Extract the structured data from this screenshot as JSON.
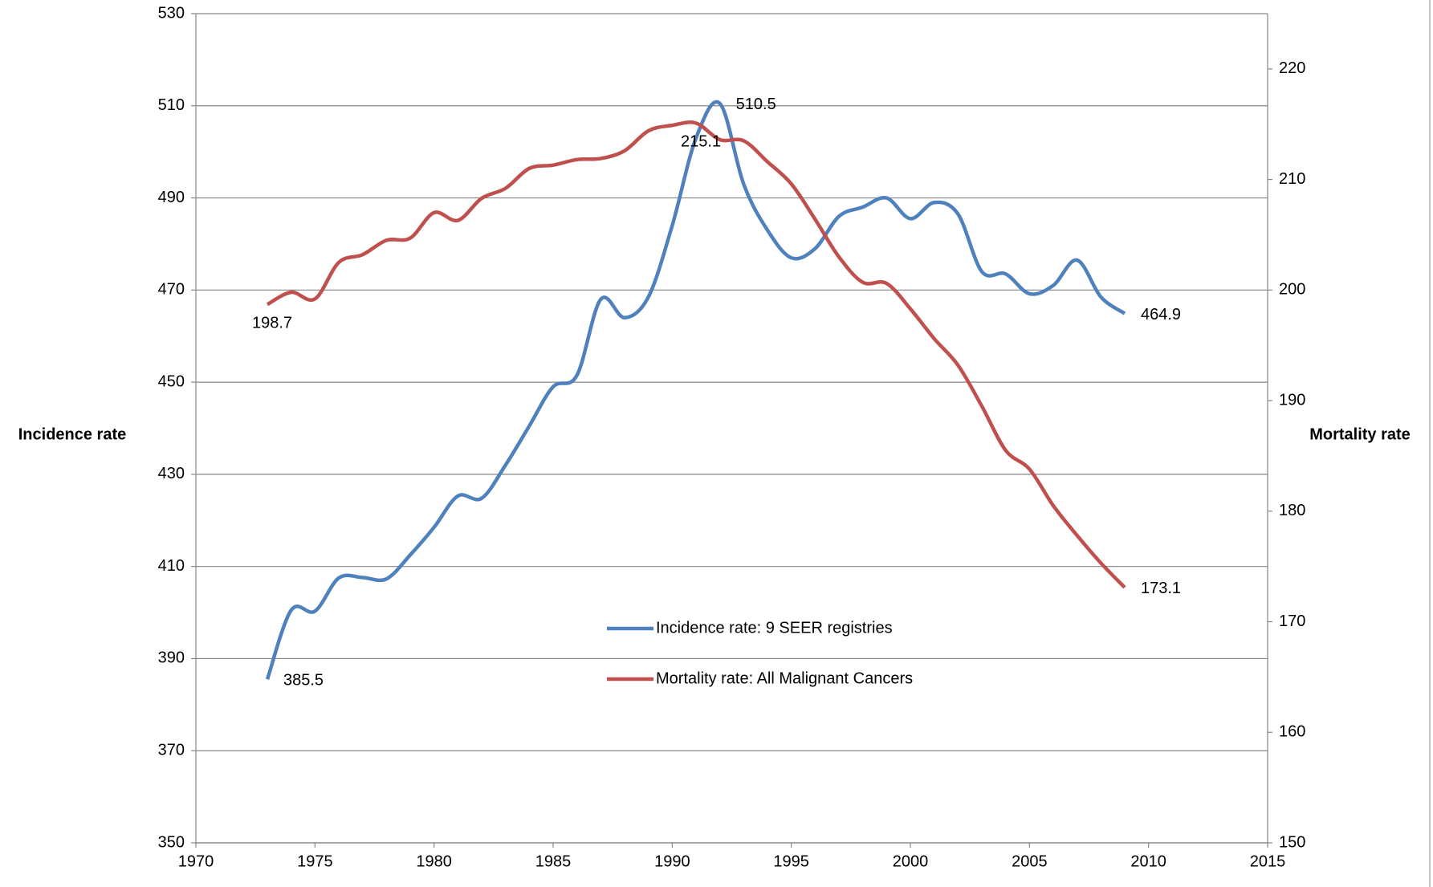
{
  "chart_data": {
    "type": "line",
    "x": [
      1973,
      1974,
      1975,
      1976,
      1977,
      1978,
      1979,
      1980,
      1981,
      1982,
      1983,
      1984,
      1985,
      1986,
      1987,
      1988,
      1989,
      1990,
      1991,
      1992,
      1993,
      1994,
      1995,
      1996,
      1997,
      1998,
      1999,
      2000,
      2001,
      2002,
      2003,
      2004,
      2005,
      2006,
      2007,
      2008,
      2009
    ],
    "y_label": "Incidence rate",
    "y2_label": "Mortality rate",
    "series": [
      {
        "name": "Incidence rate: 9 SEER registries",
        "color": "#4f81bd",
        "axis": "y",
        "values": [
          385.5,
          400.5,
          400.3,
          407.5,
          407.6,
          407.3,
          412.5,
          418.5,
          425.3,
          424.8,
          432,
          440.5,
          449,
          451.5,
          468,
          464,
          468.5,
          484,
          503,
          510.5,
          493,
          483,
          477,
          479,
          486,
          488,
          490,
          485.5,
          489,
          486.5,
          474,
          473.5,
          469.2,
          471,
          476.5,
          468.5,
          464.9
        ],
        "value_labels": [
          "385.5",
          null,
          null,
          null,
          null,
          null,
          null,
          null,
          null,
          null,
          null,
          null,
          null,
          null,
          null,
          null,
          null,
          null,
          null,
          "510.5",
          null,
          null,
          null,
          null,
          null,
          null,
          null,
          null,
          null,
          null,
          null,
          null,
          null,
          null,
          null,
          null,
          "464.9"
        ]
      },
      {
        "name": "Mortality rate: All Malignant Cancers",
        "color": "#c0504d",
        "axis": "y2",
        "values": [
          198.7,
          199.8,
          199.2,
          202.5,
          203.2,
          204.5,
          204.7,
          207,
          206.3,
          208.3,
          209.2,
          211,
          211.3,
          211.8,
          211.9,
          212.6,
          214.4,
          214.9,
          215.1,
          213.6,
          213.5,
          211.6,
          209.6,
          206.4,
          203,
          200.7,
          200.6,
          198.3,
          195.6,
          193.2,
          189.5,
          185.5,
          183.8,
          180.5,
          177.8,
          175.3,
          173.1
        ],
        "value_labels": [
          "198.7",
          null,
          null,
          null,
          null,
          null,
          null,
          null,
          null,
          null,
          null,
          null,
          null,
          null,
          null,
          null,
          null,
          null,
          "215.1",
          null,
          null,
          null,
          null,
          null,
          null,
          null,
          null,
          null,
          null,
          null,
          null,
          null,
          null,
          null,
          null,
          null,
          "173.1"
        ]
      }
    ],
    "xlim": [
      1970,
      2015
    ],
    "xticks": [
      1970,
      1975,
      1980,
      1985,
      1990,
      1995,
      2000,
      2005,
      2010,
      2015
    ],
    "ylim": [
      350,
      530
    ],
    "yticks": [
      350,
      370,
      390,
      410,
      430,
      450,
      470,
      490,
      510,
      530
    ],
    "y2lim": [
      150,
      225
    ],
    "y2ticks": [
      150,
      160,
      170,
      180,
      190,
      200,
      210,
      220
    ],
    "grid": true
  }
}
